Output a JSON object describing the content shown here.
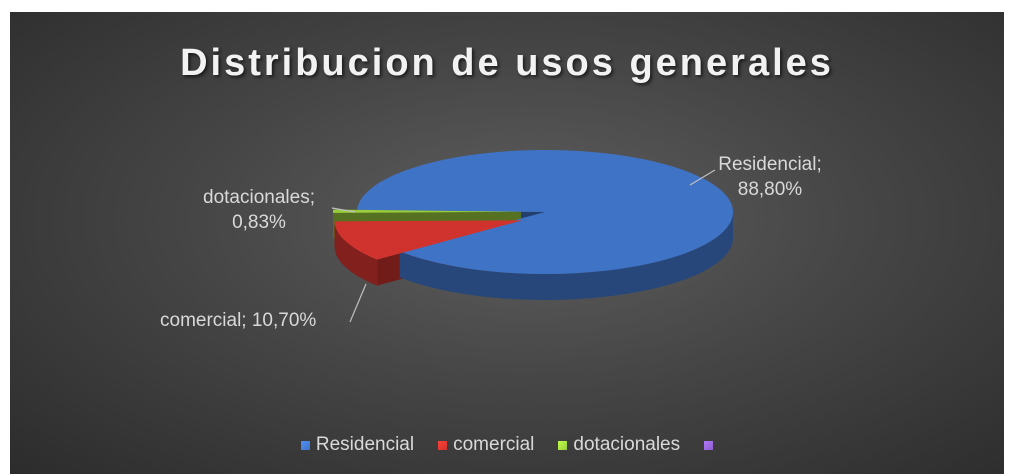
{
  "chart_data": {
    "type": "pie",
    "title": "Distribucion de usos generales",
    "categories": [
      "Residencial",
      "comercial",
      "dotacionales",
      null
    ],
    "values": [
      88.8,
      10.7,
      0.83,
      0
    ],
    "value_labels": [
      "Residencial; 88,80%",
      "comercial; 10,70%",
      "dotacionales; 0,83%",
      null
    ],
    "colors": [
      "#3f73c6",
      "#d0332d",
      "#9acd3c",
      "#8e5fc9"
    ],
    "legend": "bottom"
  }
}
